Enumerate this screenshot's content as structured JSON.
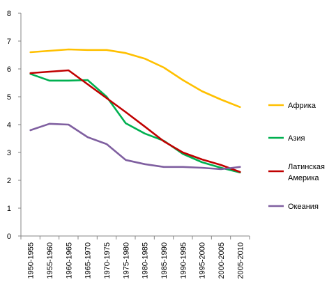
{
  "chart_data": {
    "type": "line",
    "title": "",
    "xlabel": "",
    "ylabel": "",
    "ylim": [
      0,
      8
    ],
    "y_ticks": [
      "0",
      "1",
      "2",
      "3",
      "4",
      "5",
      "6",
      "7",
      "8"
    ],
    "grid": false,
    "legend_position": "right",
    "categories": [
      "1950-1955",
      "1955-1960",
      "1960-1965",
      "1965-1970",
      "1970-1975",
      "1975-1980",
      "1980-1985",
      "1985-1990",
      "1990-1995",
      "1995-2000",
      "2000-2005",
      "2005-2010"
    ],
    "series": [
      {
        "name": "Африка",
        "color": "#FFC000",
        "values": [
          6.6,
          6.65,
          6.7,
          6.68,
          6.68,
          6.57,
          6.37,
          6.05,
          5.6,
          5.2,
          4.9,
          4.63
        ]
      },
      {
        "name": "Азия",
        "color": "#00B050",
        "values": [
          5.82,
          5.58,
          5.58,
          5.6,
          5.0,
          4.05,
          3.68,
          3.42,
          2.95,
          2.65,
          2.45,
          2.28
        ]
      },
      {
        "name": "Латинская Америка",
        "color": "#C00000",
        "values": [
          5.85,
          5.9,
          5.95,
          5.45,
          4.95,
          4.45,
          3.93,
          3.4,
          3.0,
          2.75,
          2.55,
          2.3
        ]
      },
      {
        "name": "Океания",
        "color": "#7F5FA0",
        "values": [
          3.8,
          4.03,
          4.0,
          3.55,
          3.3,
          2.73,
          2.58,
          2.48,
          2.48,
          2.45,
          2.4,
          2.48
        ]
      }
    ]
  }
}
